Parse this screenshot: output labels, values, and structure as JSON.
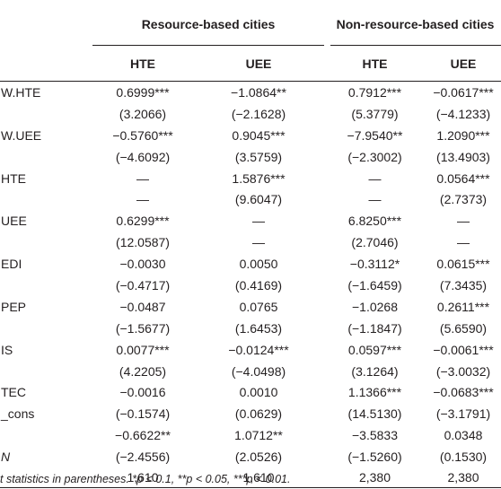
{
  "groups": [
    "Resource-based cities",
    "Non-resource-based cities"
  ],
  "columns": [
    "HTE",
    "UEE",
    "HTE",
    "UEE"
  ],
  "rows": [
    {
      "label": "W.HTE",
      "cells": [
        "0.6999***",
        "−1.0864**",
        "0.7912***",
        "−0.0617***"
      ]
    },
    {
      "label": "",
      "cells": [
        "(3.2066)",
        "(−2.1628)",
        "(5.3779)",
        "(−4.1233)"
      ]
    },
    {
      "label": "W.UEE",
      "cells": [
        "−0.5760***",
        "0.9045***",
        "−7.9540**",
        "1.2090***"
      ]
    },
    {
      "label": "",
      "cells": [
        "(−4.6092)",
        "(3.5759)",
        "(−2.3002)",
        "(13.4903)"
      ]
    },
    {
      "label": "HTE",
      "cells": [
        "—",
        "1.5876***",
        "—",
        "0.0564***"
      ]
    },
    {
      "label": "",
      "cells": [
        "—",
        "(9.6047)",
        "—",
        "(2.7373)"
      ]
    },
    {
      "label": "UEE",
      "cells": [
        "0.6299***",
        "—",
        "6.8250***",
        "—"
      ]
    },
    {
      "label": "",
      "cells": [
        "(12.0587)",
        "—",
        "(2.7046)",
        "—"
      ]
    },
    {
      "label": "EDI",
      "cells": [
        "−0.0030",
        "0.0050",
        "−0.3112*",
        "0.0615***"
      ]
    },
    {
      "label": "",
      "cells": [
        "(−0.4717)",
        "(0.4169)",
        "(−1.6459)",
        "(7.3435)"
      ]
    },
    {
      "label": "PEP",
      "cells": [
        "−0.0487",
        "0.0765",
        "−1.0268",
        "0.2611***"
      ]
    },
    {
      "label": "",
      "cells": [
        "(−1.5677)",
        "(1.6453)",
        "(−1.1847)",
        "(5.6590)"
      ]
    },
    {
      "label": "IS",
      "cells": [
        "0.0077***",
        "−0.0124***",
        "0.0597***",
        "−0.0061***"
      ]
    },
    {
      "label": "",
      "cells": [
        "(4.2205)",
        "(−4.0498)",
        "(3.1264)",
        "(−3.0032)"
      ]
    },
    {
      "label": "TEC",
      "cells": [
        "−0.0016",
        "0.0010",
        "1.1366***",
        "−0.0683***"
      ]
    },
    {
      "label": "_cons",
      "cells": [
        "(−0.1574)",
        "(0.0629)",
        "(14.5130)",
        "(−3.1791)"
      ]
    },
    {
      "label": "",
      "cells": [
        "−0.6622**",
        "1.0712**",
        "−3.5833",
        "0.0348"
      ]
    },
    {
      "label": "N",
      "cells": [
        "(−2.4556)",
        "(2.0526)",
        "(−1.5260)",
        "(0.1530)"
      ]
    },
    {
      "label": "",
      "cells": [
        "1,610",
        "1,610",
        "2,380",
        "2,380"
      ]
    }
  ],
  "note": "t statistics in parentheses. *p < 0.1, **p < 0.05, ***p < 0.01."
}
